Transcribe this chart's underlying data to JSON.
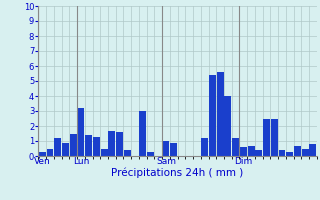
{
  "values": [
    0.3,
    0.5,
    1.2,
    0.9,
    1.5,
    3.2,
    1.4,
    1.3,
    0.5,
    1.7,
    1.6,
    0.4,
    0.0,
    3.0,
    0.3,
    0.0,
    1.0,
    0.9,
    0.0,
    0.0,
    0.0,
    1.2,
    5.4,
    5.6,
    4.0,
    1.2,
    0.6,
    0.7,
    0.4,
    2.5,
    2.5,
    0.4,
    0.3,
    0.7,
    0.5,
    0.8
  ],
  "day_labels": [
    "Ven",
    "Lun",
    "Sam",
    "Dim"
  ],
  "day_positions": [
    0,
    5,
    16,
    26
  ],
  "xlabel": "Précipitations 24h ( mm )",
  "ylim": [
    0,
    10
  ],
  "yticks": [
    0,
    1,
    2,
    3,
    4,
    5,
    6,
    7,
    8,
    9,
    10
  ],
  "bar_color": "#1a3fcc",
  "bg_color": "#d8f0f0",
  "grid_color": "#b0c8c8",
  "xlabel_color": "#0000cc",
  "tick_color": "#0000cc",
  "sep_color": "#888888",
  "figsize": [
    3.2,
    2.0
  ],
  "dpi": 100
}
